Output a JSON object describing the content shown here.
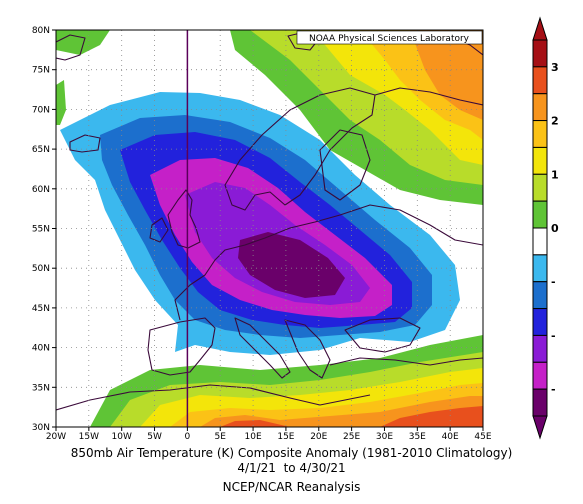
{
  "map": {
    "credit": "NOAA Physical Sciences Laboratory",
    "lat_labels": [
      "30N",
      "35N",
      "40N",
      "45N",
      "50N",
      "55N",
      "60N",
      "65N",
      "70N",
      "75N",
      "80N"
    ],
    "lon_labels": [
      "20W",
      "15W",
      "10W",
      "5W",
      "0",
      "5E",
      "10E",
      "15E",
      "20E",
      "25E",
      "30E",
      "35E",
      "40E",
      "45E"
    ],
    "extent": {
      "lon_min": -20,
      "lon_max": 45,
      "lat_min": 30,
      "lat_max": 80
    }
  },
  "colorbar": {
    "labels": [
      "3",
      "2",
      "1",
      "0",
      "-",
      "-",
      "-"
    ],
    "colors": [
      "#a50f15",
      "#e8501d",
      "#f7941d",
      "#fbc216",
      "#f3e50a",
      "#b8dc2a",
      "#5fc436",
      "#ffffff",
      "#3bb8ee",
      "#1c6fcd",
      "#2222dc",
      "#8a1bd6",
      "#c520c8",
      "#6a006a"
    ]
  },
  "caption": {
    "line1": "850mb Air Temperature (K) Composite Anomaly (1981-2010 Climatology)",
    "line2": "4/1/21  to 4/30/21",
    "line3": "NCEP/NCAR Reanalysis"
  }
}
